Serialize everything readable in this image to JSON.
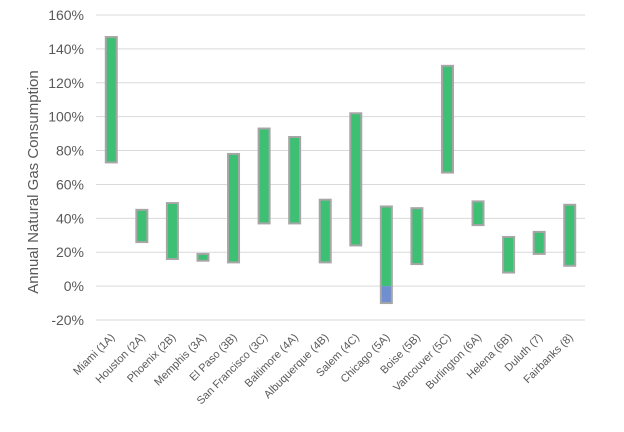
{
  "chart_data": {
    "type": "bar",
    "subtype": "floating-range",
    "title": "",
    "xlabel": "",
    "ylabel": "Annual Natural Gas Consumption",
    "ylim": [
      -20,
      160
    ],
    "yticks": [
      "-20%",
      "0%",
      "20%",
      "40%",
      "60%",
      "80%",
      "100%",
      "120%",
      "140%",
      "160%"
    ],
    "grid": true,
    "categories": [
      "Miami (1A)",
      "Houston (2A)",
      "Phoenix (2B)",
      "Memphis (3A)",
      "El Paso (3B)",
      "San Francisco (3C)",
      "Baltimore (4A)",
      "Albuquerque (4B)",
      "Salem (4C)",
      "Chicago (5A)",
      "Boise (5B)",
      "Vancouver (5C)",
      "Burlington (6A)",
      "Helena (6B)",
      "Duluth (7)",
      "Fairbanks (8)"
    ],
    "ranges": [
      {
        "low": 73,
        "high": 147
      },
      {
        "low": 26,
        "high": 45
      },
      {
        "low": 16,
        "high": 49
      },
      {
        "low": 15,
        "high": 19
      },
      {
        "low": 14,
        "high": 78
      },
      {
        "low": 37,
        "high": 93
      },
      {
        "low": 37,
        "high": 88
      },
      {
        "low": 14,
        "high": 51
      },
      {
        "low": 24,
        "high": 102
      },
      {
        "low": -10,
        "high": 47
      },
      {
        "low": 13,
        "high": 46
      },
      {
        "low": 67,
        "high": 130
      },
      {
        "low": 36,
        "high": 50
      },
      {
        "low": 8,
        "high": 29
      },
      {
        "low": 19,
        "high": 32
      },
      {
        "low": 12,
        "high": 48
      }
    ],
    "colors": {
      "positive": "#3dbf74",
      "negative": "#6f8fd1",
      "border": "#a6a6a6",
      "grid": "#d9d9d9"
    }
  }
}
